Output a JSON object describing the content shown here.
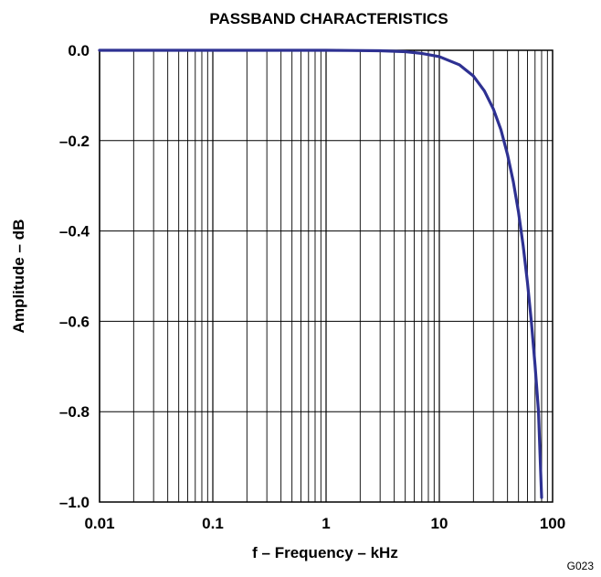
{
  "chart_data": {
    "type": "line",
    "title": "PASSBAND CHARACTERISTICS",
    "xlabel": "f – Frequency – kHz",
    "ylabel": "Amplitude – dB",
    "x_scale": "log",
    "xlim": [
      0.01,
      100
    ],
    "ylim": [
      -1.0,
      0.0
    ],
    "x_ticks": [
      0.01,
      0.1,
      1,
      10,
      100
    ],
    "x_tick_labels": [
      "0.01",
      "0.1",
      "1",
      "10",
      "100"
    ],
    "y_ticks": [
      0.0,
      -0.2,
      -0.4,
      -0.6,
      -0.8,
      -1.0
    ],
    "y_tick_labels": [
      "0.0",
      "–0.2",
      "–0.4",
      "–0.6",
      "–0.8",
      "–1.0"
    ],
    "grid": true,
    "series_color": "#2e3192",
    "series": [
      {
        "x": [
          0.01,
          0.1,
          1,
          3,
          5,
          7,
          10,
          15,
          20,
          25,
          30,
          35,
          40,
          45,
          50,
          55,
          60,
          65,
          70,
          75,
          80
        ],
        "values": [
          0.0,
          0.0,
          0.0,
          -0.001,
          -0.003,
          -0.007,
          -0.014,
          -0.032,
          -0.057,
          -0.09,
          -0.13,
          -0.176,
          -0.231,
          -0.291,
          -0.358,
          -0.433,
          -0.514,
          -0.602,
          -0.697,
          -0.798,
          -0.99
        ]
      }
    ]
  },
  "figure_code": "G023"
}
